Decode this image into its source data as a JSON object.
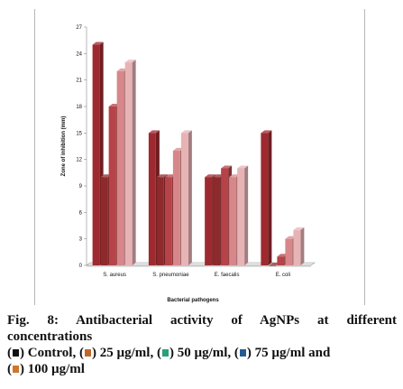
{
  "chart_data": {
    "type": "bar",
    "categories": [
      "S. aureus",
      "S. pneumoniae",
      "E. faecalis",
      "E. coli"
    ],
    "series": [
      {
        "name": "Control",
        "values": [
          25,
          15,
          10,
          15
        ],
        "color": "#9e2a2f"
      },
      {
        "name": "25 µg/ml",
        "values": [
          10,
          10,
          10,
          0
        ],
        "color": "#8e2a2c"
      },
      {
        "name": "50 µg/ml",
        "values": [
          18,
          10,
          11,
          1
        ],
        "color": "#b64348"
      },
      {
        "name": "75 µg/ml",
        "values": [
          22,
          13,
          10,
          3
        ],
        "color": "#d7878a"
      },
      {
        "name": "100 µg/ml",
        "values": [
          23,
          15,
          11,
          4
        ],
        "color": "#e7b3b5"
      }
    ],
    "yticks": [
      "0",
      "3",
      "6",
      "9",
      "12",
      "15",
      "18",
      "21",
      "24",
      "27"
    ],
    "ylim": [
      0,
      27
    ],
    "xlabel": "Bacterial pathogens",
    "ylabel": "Zone of  inhibition (mm)",
    "grid": false,
    "style": "3d"
  },
  "caption": {
    "line1": "Fig.  8:  Antibacterial  activity  of  AgNPs  at  different",
    "line2": "concentrations",
    "items": [
      {
        "prefix": "(",
        "suffix": ") Control, ",
        "color": "#111111"
      },
      {
        "prefix": "(",
        "suffix": ") 25 µg/ml, ",
        "color": "#c0682a"
      },
      {
        "prefix": "(",
        "suffix": ") 50 µg/ml, ",
        "color": "#2aa07a"
      },
      {
        "prefix": "(",
        "suffix": ") 75 µg/ml and",
        "color": "#245a92"
      },
      {
        "prefix": "(",
        "suffix": ") 100 µg/ml",
        "color": "#d0762a"
      }
    ]
  }
}
